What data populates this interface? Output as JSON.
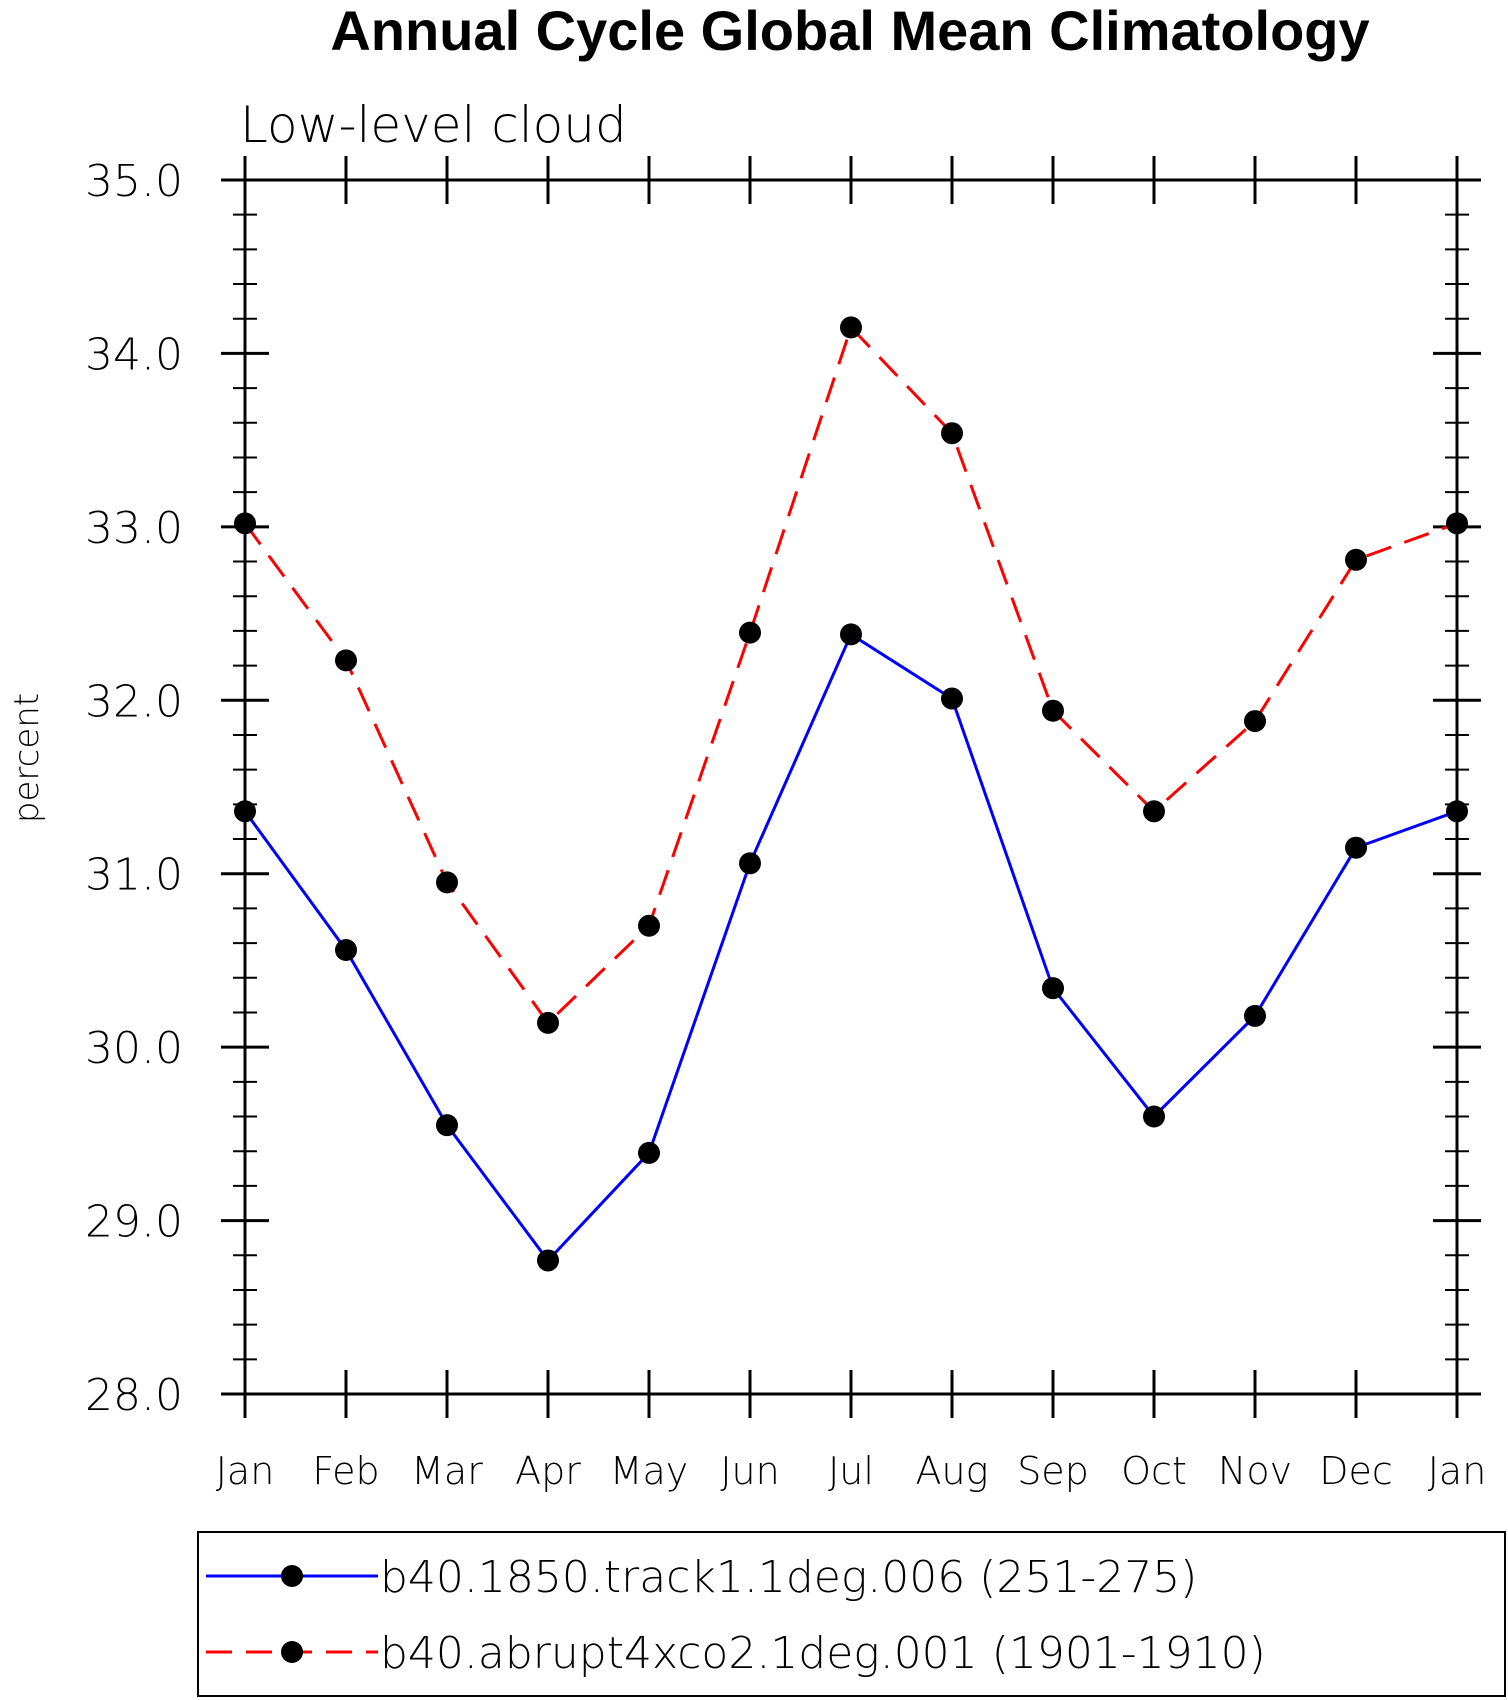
{
  "chart_data": {
    "type": "line",
    "title": "Annual Cycle Global Mean Climatology",
    "subtitle": "Low-level cloud",
    "xlabel": "",
    "ylabel": "percent",
    "categories": [
      "Jan",
      "Feb",
      "Mar",
      "Apr",
      "May",
      "Jun",
      "Jul",
      "Aug",
      "Sep",
      "Oct",
      "Nov",
      "Dec",
      "Jan"
    ],
    "ylim": [
      28.0,
      35.0
    ],
    "yticks": [
      "28.0",
      "29.0",
      "30.0",
      "31.0",
      "32.0",
      "33.0",
      "34.0",
      "35.0"
    ],
    "grid": false,
    "legend_position": "bottom",
    "series": [
      {
        "name": "b40.1850.track1.1deg.006 (251-275)",
        "color": "#0000ff",
        "line_style": "solid",
        "marker": "filled-circle",
        "values": [
          31.36,
          30.56,
          29.55,
          28.77,
          29.39,
          31.06,
          32.38,
          32.01,
          30.34,
          29.6,
          30.18,
          31.15,
          31.36
        ]
      },
      {
        "name": "b40.abrupt4xco2.1deg.001 (1901-1910)",
        "color": "#ff0000",
        "line_style": "dashed",
        "marker": "filled-circle",
        "values": [
          33.02,
          32.23,
          30.95,
          30.14,
          30.7,
          32.39,
          34.15,
          33.54,
          31.94,
          31.36,
          31.88,
          32.81,
          33.02
        ]
      }
    ]
  }
}
